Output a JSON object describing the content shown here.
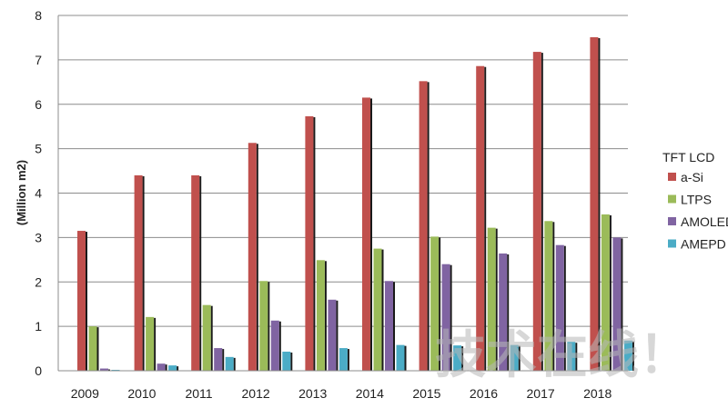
{
  "chart_data": {
    "type": "bar",
    "title": "",
    "xlabel": "",
    "ylabel": "(Million m2)",
    "ylim": [
      0,
      8
    ],
    "yticks": [
      0,
      1,
      2,
      3,
      4,
      5,
      6,
      7,
      8
    ],
    "grid": true,
    "legend_title": "TFT LCD",
    "legend_position": "right",
    "categories": [
      "2009",
      "2010",
      "2011",
      "2012",
      "2013",
      "2014",
      "2015",
      "2016",
      "2017",
      "2018"
    ],
    "series": [
      {
        "name": "a-Si",
        "color": "#c0504d",
        "values": [
          3.15,
          4.4,
          4.4,
          5.13,
          5.73,
          6.15,
          6.52,
          6.86,
          7.18,
          7.51
        ]
      },
      {
        "name": "LTPS",
        "color": "#9bbb59",
        "values": [
          1.0,
          1.21,
          1.48,
          2.02,
          2.49,
          2.75,
          3.02,
          3.22,
          3.37,
          3.52
        ]
      },
      {
        "name": "AMOLED",
        "color": "#8064a2",
        "values": [
          0.05,
          0.16,
          0.51,
          1.13,
          1.6,
          2.02,
          2.4,
          2.64,
          2.83,
          3.0
        ]
      },
      {
        "name": "AMEPD",
        "color": "#4bacc6",
        "values": [
          0.02,
          0.12,
          0.31,
          0.43,
          0.51,
          0.58,
          0.57,
          0.58,
          0.65,
          0.68
        ]
      }
    ]
  },
  "watermark": "技术在线！"
}
